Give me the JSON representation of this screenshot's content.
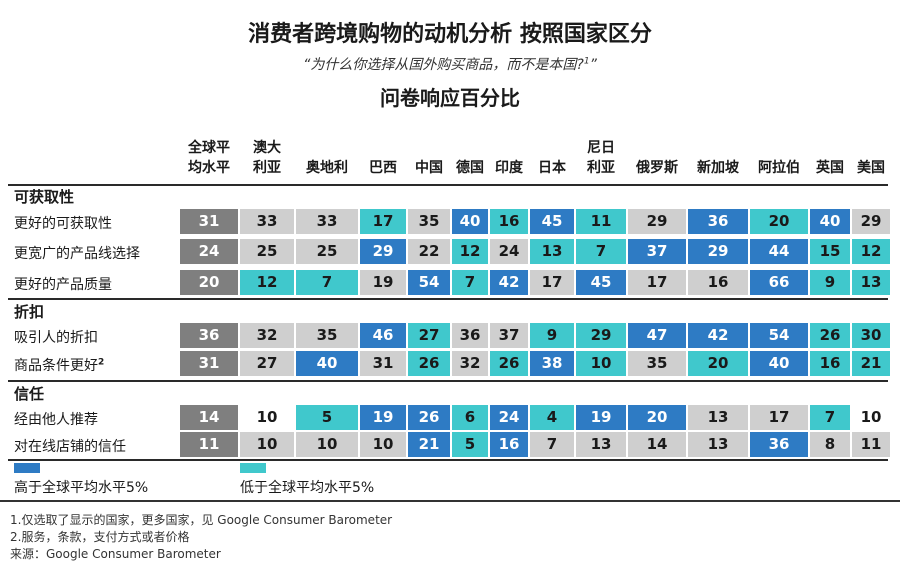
{
  "title": "消费者跨境购物的动机分析 按照国家区分",
  "subtitle": "“为什么你选择从国外购买商品，而不是本国?",
  "subtitle_sup": "1",
  "subtitle_end": "”",
  "title2": "问卷响应百分比",
  "colors": {
    "above": "#2e7bc4",
    "below": "#40c8cc",
    "global": "#7f7f7f",
    "neutral": "#cfcfcf",
    "white": "#ffffff"
  },
  "chart_data": {
    "type": "table",
    "columns": [
      "全球平\n均水平",
      "澳大\n利亚",
      "奥地利",
      "巴西",
      "中国",
      "德国",
      "印度",
      "日本",
      "尼日\n利亚",
      "俄罗斯",
      "新加坡",
      "阿拉伯",
      "英国",
      "美国"
    ],
    "sections": [
      {
        "label": "可获取性",
        "rows": [
          {
            "label": "更好的可获取性",
            "values": [
              31,
              33,
              33,
              17,
              35,
              40,
              16,
              45,
              11,
              29,
              36,
              20,
              40,
              29
            ],
            "status": [
              "g",
              "n",
              "n",
              "b",
              "n",
              "a",
              "b",
              "a",
              "b",
              "n",
              "a",
              "b",
              "a",
              "n"
            ]
          },
          {
            "label": "更宽广的产品线选择",
            "values": [
              24,
              25,
              25,
              29,
              22,
              12,
              24,
              13,
              7,
              37,
              29,
              44,
              15,
              12
            ],
            "status": [
              "g",
              "n",
              "n",
              "a",
              "n",
              "b",
              "n",
              "b",
              "b",
              "a",
              "a",
              "a",
              "b",
              "b"
            ]
          },
          {
            "label": "更好的产品质量",
            "values": [
              20,
              12,
              7,
              19,
              54,
              7,
              42,
              17,
              45,
              17,
              16,
              66,
              9,
              13
            ],
            "status": [
              "g",
              "b",
              "b",
              "n",
              "a",
              "b",
              "a",
              "n",
              "a",
              "n",
              "n",
              "a",
              "b",
              "b"
            ]
          }
        ]
      },
      {
        "label": "折扣",
        "rows": [
          {
            "label": "吸引人的折扣",
            "values": [
              36,
              32,
              35,
              46,
              27,
              36,
              37,
              9,
              29,
              47,
              42,
              54,
              26,
              30
            ],
            "status": [
              "g",
              "n",
              "n",
              "a",
              "b",
              "n",
              "n",
              "b",
              "b",
              "a",
              "a",
              "a",
              "b",
              "b"
            ]
          },
          {
            "label": "商品条件更好",
            "sup": "2",
            "values": [
              31,
              27,
              40,
              31,
              26,
              32,
              26,
              38,
              10,
              35,
              20,
              40,
              16,
              21
            ],
            "status": [
              "g",
              "n",
              "a",
              "n",
              "b",
              "n",
              "b",
              "a",
              "b",
              "n",
              "b",
              "a",
              "b",
              "b"
            ]
          }
        ]
      },
      {
        "label": "信任",
        "rows": [
          {
            "label": "经由他人推荐",
            "values": [
              14,
              10,
              5,
              19,
              26,
              6,
              24,
              4,
              19,
              20,
              13,
              17,
              7,
              10
            ],
            "status": [
              "g",
              "w",
              "b",
              "a",
              "a",
              "b",
              "a",
              "b",
              "a",
              "a",
              "n",
              "n",
              "b",
              "w"
            ]
          },
          {
            "label": "对在线店铺的信任",
            "values": [
              11,
              10,
              10,
              10,
              21,
              5,
              16,
              7,
              13,
              14,
              13,
              36,
              8,
              11
            ],
            "status": [
              "g",
              "n",
              "n",
              "n",
              "a",
              "b",
              "a",
              "n",
              "n",
              "n",
              "n",
              "a",
              "n",
              "n"
            ]
          }
        ]
      }
    ],
    "legend": [
      {
        "label": "高于全球平均水平5%",
        "color": "#2e7bc4"
      },
      {
        "label": "低于全球平均水平5%",
        "color": "#40c8cc"
      }
    ]
  },
  "footnotes": [
    "1.仅选取了显示的国家，更多国家，见 Google Consumer Barometer",
    "2.服务，条款，支付方式或者价格",
    "来源：Google Consumer Barometer"
  ]
}
